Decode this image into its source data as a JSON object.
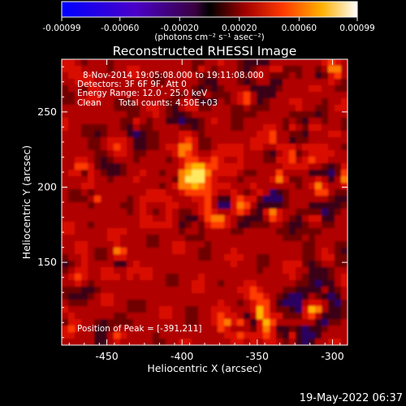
{
  "colorbar": {
    "ticks": [
      "-0.00099",
      "-0.00060",
      "-0.00020",
      "0.00020",
      "0.00060",
      "0.00099"
    ],
    "tick_values": [
      -0.00099,
      -0.0006,
      -0.0002,
      0.0002,
      0.0006,
      0.00099
    ],
    "range": [
      -0.00099,
      0.00099
    ],
    "units_label": "(photons cm⁻² s⁻¹ asec⁻²)"
  },
  "title": "Reconstructed RHESSI Image",
  "annotation": {
    "line1": "8-Nov-2014 19:05:08.000 to 19:11:08.000",
    "line2": "Detectors: 3F 6F 9F, Att 0",
    "line3": "Energy Range: 12.0 - 25.0 keV",
    "line4_a": "Clean",
    "line4_b": "Total counts: 4.50E+03",
    "peak": "Position of Peak = [-391,211]"
  },
  "footer": {
    "timestamp": "19-May-2022 06:37"
  },
  "chart_data": {
    "type": "heatmap",
    "title": "Reconstructed RHESSI Image",
    "xlabel": "Heliocentric X (arcsec)",
    "ylabel": "Heliocentric Y (arcsec)",
    "xlim": [
      -480,
      -290
    ],
    "ylim": [
      95,
      285
    ],
    "x_ticks": [
      -450,
      -400,
      -350,
      -300
    ],
    "y_ticks": [
      150,
      200,
      250
    ],
    "x_tick_labels": [
      "-450",
      "-400",
      "-350",
      "-300"
    ],
    "y_tick_labels": [
      "150",
      "200",
      "250"
    ],
    "peak_position": [
      -391,
      211
    ],
    "value_range": [
      -0.00099,
      0.00099
    ],
    "units": "photons cm^-2 s^-1 asec^-2",
    "colormap": "red-temperature with negative blue-purple",
    "colors": {
      "negative_end": "#0000ff",
      "mid_negative": "#7a0080",
      "zero": "#000000",
      "positive_low": "#c80000",
      "positive_mid": "#ff8000",
      "positive_high": "#ffff00",
      "positive_end": "#ffffff"
    }
  }
}
